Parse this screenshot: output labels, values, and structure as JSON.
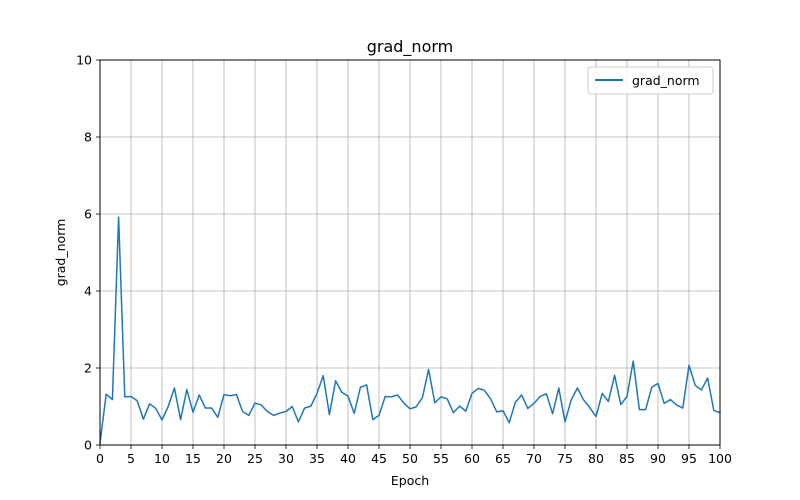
{
  "chart_data": {
    "type": "line",
    "title": "grad_norm",
    "xlabel": "Epoch",
    "ylabel": "grad_norm",
    "xlim": [
      0,
      100
    ],
    "ylim": [
      0,
      10
    ],
    "grid": true,
    "legend_position": "top-right",
    "x_ticks": [
      0,
      5,
      10,
      15,
      20,
      25,
      30,
      35,
      40,
      45,
      50,
      55,
      60,
      65,
      70,
      75,
      80,
      85,
      90,
      95,
      100
    ],
    "y_ticks": [
      0,
      2,
      4,
      6,
      8,
      10
    ],
    "series": [
      {
        "name": "grad_norm",
        "color": "#1f77b4",
        "x": [
          0,
          1,
          2,
          3,
          4,
          5,
          6,
          7,
          8,
          9,
          10,
          11,
          12,
          13,
          14,
          15,
          16,
          17,
          18,
          19,
          20,
          21,
          22,
          23,
          24,
          25,
          26,
          27,
          28,
          29,
          30,
          31,
          32,
          33,
          34,
          35,
          36,
          37,
          38,
          39,
          40,
          41,
          42,
          43,
          44,
          45,
          46,
          47,
          48,
          49,
          50,
          51,
          52,
          53,
          54,
          55,
          56,
          57,
          58,
          59,
          60,
          61,
          62,
          63,
          64,
          65,
          66,
          67,
          68,
          69,
          70,
          71,
          72,
          73,
          74,
          75,
          76,
          77,
          78,
          79,
          80,
          81,
          82,
          83,
          84,
          85,
          86,
          87,
          88,
          89,
          90,
          91,
          92,
          93,
          94,
          95,
          96,
          97,
          98,
          99,
          100
        ],
        "values": [
          0.05,
          1.32,
          1.18,
          5.92,
          1.25,
          1.26,
          1.15,
          0.67,
          1.07,
          0.95,
          0.65,
          1.0,
          1.48,
          0.66,
          1.44,
          0.85,
          1.3,
          0.96,
          0.96,
          0.72,
          1.31,
          1.28,
          1.31,
          0.87,
          0.77,
          1.09,
          1.04,
          0.87,
          0.77,
          0.83,
          0.87,
          1.0,
          0.6,
          0.96,
          1.01,
          1.34,
          1.8,
          0.79,
          1.67,
          1.37,
          1.27,
          0.82,
          1.5,
          1.56,
          0.66,
          0.77,
          1.26,
          1.25,
          1.3,
          1.09,
          0.94,
          0.99,
          1.23,
          1.96,
          1.1,
          1.25,
          1.2,
          0.84,
          1.01,
          0.88,
          1.34,
          1.47,
          1.42,
          1.2,
          0.86,
          0.89,
          0.58,
          1.11,
          1.3,
          0.95,
          1.08,
          1.26,
          1.33,
          0.81,
          1.48,
          0.6,
          1.17,
          1.48,
          1.17,
          0.97,
          0.74,
          1.34,
          1.13,
          1.81,
          1.05,
          1.26,
          2.18,
          0.92,
          0.92,
          1.5,
          1.6,
          1.08,
          1.18,
          1.04,
          0.96,
          2.07,
          1.55,
          1.43,
          1.74,
          0.9,
          0.84
        ]
      }
    ]
  }
}
